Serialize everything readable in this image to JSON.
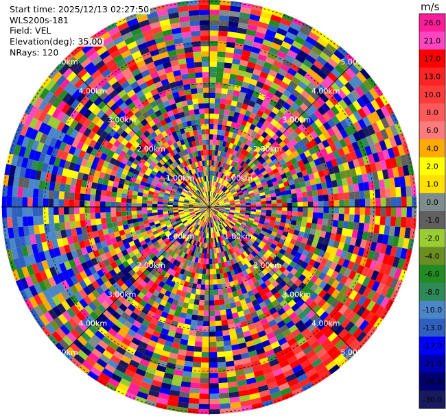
{
  "header": {
    "start_time": "Start time: 2025/12/13 02:27:50",
    "instrument": "WLS200s-181",
    "field": "Field: VEL",
    "elevation": "Elevation(deg): 35.00",
    "nrays": "NRays: 120"
  },
  "colorbar": {
    "unit": "m/s",
    "levels": [
      "26.0",
      "21.0",
      "17.0",
      "13.0",
      "10.0",
      "8.0",
      "6.0",
      "4.0",
      "2.0",
      "1.0",
      "0.0",
      "-1.0",
      "-2.0",
      "-4.0",
      "-6.0",
      "-8.0",
      "-10.0",
      "-13.0",
      "-17.0",
      "-21.0",
      "-26.0",
      "-30.0"
    ],
    "colors": [
      "#ff1e9a",
      "#ff46c0",
      "#ff0000",
      "#ff2424",
      "#ff3c3c",
      "#ff5a5a",
      "#ff7a7a",
      "#ffaa00",
      "#ffff00",
      "#ffe000",
      "#7f8c8d",
      "#606060",
      "#9acd32",
      "#6b8e23",
      "#228b22",
      "#2e8b57",
      "#4a86c8",
      "#2f5fbf",
      "#0000ff",
      "#0000b0",
      "#000070",
      "#1a1a60"
    ]
  },
  "chart_data": {
    "type": "heatmap",
    "projection": "polar PPI",
    "field": "VEL",
    "units": "m/s",
    "nrays": 120,
    "range_rings_km": [
      1,
      2,
      3,
      4,
      5
    ],
    "ring_labels": [
      "1.00km",
      "2.00km",
      "3.00km",
      "4.00km",
      "5.00km"
    ]
  }
}
